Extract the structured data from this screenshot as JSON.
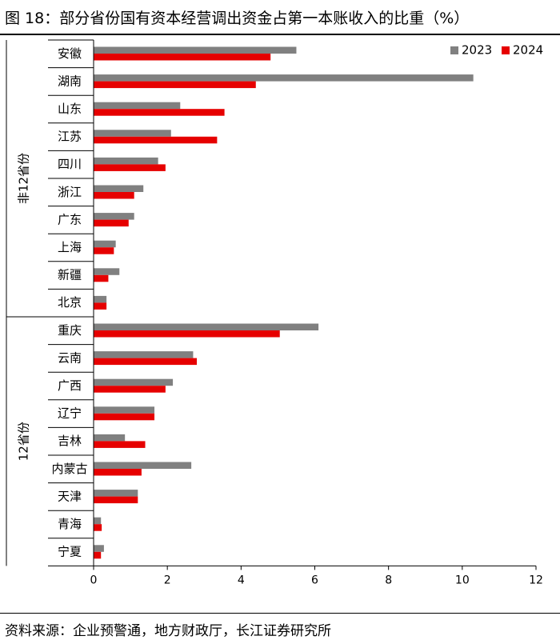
{
  "figure": {
    "title": "图 18：部分省份国有资本经营调出资金占第一本账收入的比重（%）",
    "source": "资料来源：企业预警通，地方财政厅，长江证券研究所"
  },
  "chart_data": {
    "type": "bar",
    "orientation": "horizontal",
    "categories": [
      "安徽",
      "湖南",
      "山东",
      "江苏",
      "四川",
      "浙江",
      "广东",
      "上海",
      "新疆",
      "北京",
      "重庆",
      "云南",
      "广西",
      "辽宁",
      "吉林",
      "内蒙古",
      "天津",
      "青海",
      "宁夏"
    ],
    "groups": [
      {
        "label": "非12省份",
        "count": 10
      },
      {
        "label": "12省份",
        "count": 9
      }
    ],
    "series": [
      {
        "name": "2023",
        "color": "#808080",
        "values": [
          5.5,
          10.3,
          2.35,
          2.1,
          1.75,
          1.35,
          1.1,
          0.6,
          0.7,
          0.35,
          6.1,
          2.7,
          2.15,
          1.65,
          0.85,
          2.65,
          1.2,
          0.2,
          0.28
        ]
      },
      {
        "name": "2024",
        "color": "#e60000",
        "values": [
          4.8,
          4.4,
          3.55,
          3.35,
          1.95,
          1.1,
          0.95,
          0.55,
          0.4,
          0.35,
          5.05,
          2.8,
          1.95,
          1.65,
          1.4,
          1.3,
          1.2,
          0.22,
          0.2
        ]
      }
    ],
    "xlim": [
      0,
      12
    ],
    "xticks": [
      "0",
      "2",
      "4",
      "6",
      "8",
      "10",
      "12"
    ],
    "legend_position": "top-right",
    "grid": false
  }
}
